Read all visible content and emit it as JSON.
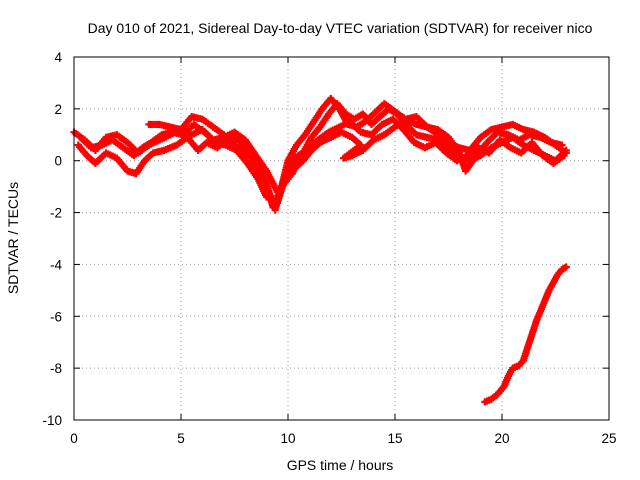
{
  "chart_data": {
    "type": "scatter",
    "title": "Day 010 of 2021, Sidereal Day-to-day VTEC variation (SDTVAR) for receiver nico",
    "xlabel": "GPS time / hours",
    "ylabel": "SDTVAR / TECUs",
    "xlim": [
      0,
      25
    ],
    "ylim": [
      -10,
      4
    ],
    "xticks": [
      0,
      5,
      10,
      15,
      20,
      25
    ],
    "yticks": [
      4,
      2,
      0,
      -2,
      -4,
      -6,
      -8,
      -10
    ],
    "grid": true,
    "marker_color": "#ff0000",
    "series": [
      {
        "name": "track-a",
        "points": [
          [
            0.0,
            1.1
          ],
          [
            0.5,
            0.8
          ],
          [
            1.0,
            0.4
          ],
          [
            1.5,
            0.9
          ],
          [
            2.0,
            1.0
          ],
          [
            2.5,
            0.7
          ],
          [
            3.0,
            0.3
          ],
          [
            3.5,
            0.6
          ],
          [
            4.0,
            0.8
          ],
          [
            4.5,
            1.0
          ],
          [
            5.0,
            1.2
          ],
          [
            5.5,
            1.7
          ],
          [
            6.0,
            1.6
          ],
          [
            6.5,
            1.3
          ],
          [
            7.0,
            1.0
          ],
          [
            7.5,
            0.6
          ],
          [
            8.0,
            0.3
          ],
          [
            8.5,
            0.0
          ],
          [
            9.0,
            -0.9
          ],
          [
            9.3,
            -1.8
          ],
          [
            9.7,
            -1.0
          ],
          [
            10.0,
            0.0
          ],
          [
            10.4,
            0.6
          ],
          [
            10.8,
            1.0
          ],
          [
            11.2,
            1.5
          ],
          [
            11.6,
            2.0
          ],
          [
            12.0,
            2.4
          ],
          [
            12.4,
            2.0
          ],
          [
            12.8,
            1.4
          ],
          [
            13.2,
            1.3
          ],
          [
            13.6,
            1.5
          ],
          [
            14.0,
            1.8
          ],
          [
            14.5,
            2.2
          ],
          [
            15.0,
            1.9
          ],
          [
            15.5,
            1.6
          ],
          [
            16.0,
            1.4
          ],
          [
            16.5,
            1.3
          ],
          [
            17.0,
            1.2
          ],
          [
            17.5,
            0.9
          ],
          [
            18.0,
            0.3
          ],
          [
            18.3,
            -0.4
          ],
          [
            18.8,
            0.2
          ],
          [
            19.3,
            0.7
          ],
          [
            19.8,
            1.1
          ],
          [
            20.3,
            1.0
          ],
          [
            20.8,
            0.8
          ],
          [
            21.3,
            1.0
          ],
          [
            21.8,
            0.9
          ],
          [
            22.3,
            0.7
          ],
          [
            22.8,
            0.6
          ]
        ]
      },
      {
        "name": "track-b",
        "points": [
          [
            0.2,
            0.6
          ],
          [
            0.6,
            0.2
          ],
          [
            1.0,
            -0.1
          ],
          [
            1.5,
            0.3
          ],
          [
            2.0,
            0.1
          ],
          [
            2.5,
            -0.4
          ],
          [
            2.9,
            -0.5
          ],
          [
            3.3,
            0.0
          ],
          [
            3.7,
            0.3
          ],
          [
            4.2,
            0.4
          ],
          [
            4.8,
            0.6
          ],
          [
            5.3,
            0.9
          ],
          [
            5.8,
            0.4
          ],
          [
            6.2,
            0.7
          ],
          [
            6.7,
            0.5
          ],
          [
            7.2,
            0.9
          ],
          [
            7.7,
            0.8
          ],
          [
            8.2,
            0.2
          ],
          [
            8.7,
            -0.5
          ],
          [
            9.1,
            -1.2
          ],
          [
            9.4,
            -1.9
          ],
          [
            9.8,
            -0.8
          ],
          [
            10.2,
            -0.5
          ],
          [
            10.5,
            0.2
          ],
          [
            10.9,
            0.4
          ],
          [
            11.4,
            0.8
          ],
          [
            11.9,
            1.1
          ],
          [
            12.4,
            1.3
          ],
          [
            12.9,
            1.5
          ],
          [
            13.4,
            1.1
          ],
          [
            13.9,
            1.0
          ],
          [
            14.4,
            1.4
          ],
          [
            14.9,
            1.6
          ],
          [
            15.4,
            1.2
          ],
          [
            15.9,
            0.7
          ],
          [
            16.4,
            0.5
          ],
          [
            16.9,
            0.7
          ],
          [
            17.4,
            0.3
          ],
          [
            17.9,
            0.0
          ],
          [
            18.4,
            0.2
          ],
          [
            18.9,
            0.5
          ],
          [
            19.4,
            0.3
          ],
          [
            19.9,
            0.8
          ],
          [
            20.4,
            0.5
          ],
          [
            20.9,
            0.3
          ],
          [
            21.4,
            0.7
          ],
          [
            21.9,
            0.2
          ],
          [
            22.4,
            -0.1
          ],
          [
            22.9,
            0.2
          ]
        ]
      },
      {
        "name": "track-c",
        "points": [
          [
            3.5,
            1.4
          ],
          [
            4.0,
            1.4
          ],
          [
            4.5,
            1.3
          ],
          [
            5.0,
            1.2
          ],
          [
            5.5,
            1.0
          ],
          [
            6.0,
            1.2
          ],
          [
            6.5,
            0.8
          ],
          [
            7.0,
            0.9
          ],
          [
            7.5,
            1.1
          ],
          [
            8.0,
            0.8
          ],
          [
            8.5,
            0.2
          ],
          [
            9.0,
            -0.4
          ],
          [
            9.5,
            -1.2
          ],
          [
            10.0,
            -0.7
          ],
          [
            10.3,
            -0.3
          ],
          [
            10.7,
            0.0
          ],
          [
            11.1,
            0.4
          ],
          [
            11.5,
            0.7
          ],
          [
            12.0,
            0.9
          ],
          [
            12.5,
            1.1
          ],
          [
            13.0,
            0.9
          ],
          [
            13.4,
            0.6
          ],
          [
            12.6,
            0.1
          ],
          [
            13.0,
            0.2
          ],
          [
            13.5,
            0.4
          ],
          [
            14.0,
            0.8
          ],
          [
            14.5,
            1.0
          ],
          [
            15.0,
            1.3
          ],
          [
            15.5,
            1.6
          ],
          [
            16.0,
            1.7
          ],
          [
            16.5,
            1.3
          ],
          [
            17.0,
            1.0
          ],
          [
            17.5,
            0.7
          ],
          [
            18.0,
            0.5
          ],
          [
            18.5,
            0.4
          ],
          [
            19.0,
            0.9
          ],
          [
            19.5,
            1.2
          ],
          [
            20.0,
            1.3
          ],
          [
            20.5,
            1.4
          ],
          [
            21.0,
            1.2
          ],
          [
            21.5,
            1.1
          ],
          [
            22.0,
            0.9
          ],
          [
            22.5,
            0.6
          ],
          [
            23.0,
            0.3
          ]
        ]
      },
      {
        "name": "track-d",
        "points": [
          [
            0.3,
            0.9
          ],
          [
            0.8,
            0.5
          ],
          [
            1.3,
            0.6
          ],
          [
            1.8,
            0.8
          ],
          [
            2.3,
            0.5
          ],
          [
            2.8,
            0.2
          ],
          [
            3.2,
            0.5
          ],
          [
            3.6,
            0.7
          ],
          [
            4.1,
            1.0
          ],
          [
            4.6,
            1.1
          ],
          [
            5.1,
            1.0
          ],
          [
            5.6,
            1.4
          ],
          [
            6.1,
            1.1
          ],
          [
            6.6,
            0.7
          ],
          [
            7.1,
            0.6
          ],
          [
            7.6,
            0.4
          ],
          [
            8.1,
            -0.1
          ],
          [
            8.6,
            -0.7
          ],
          [
            9.0,
            -1.4
          ],
          [
            9.5,
            -1.6
          ],
          [
            9.9,
            -0.6
          ],
          [
            10.3,
            0.1
          ],
          [
            10.7,
            0.3
          ],
          [
            11.1,
            0.9
          ],
          [
            11.5,
            1.3
          ],
          [
            11.9,
            1.8
          ],
          [
            12.3,
            2.2
          ],
          [
            12.7,
            1.8
          ],
          [
            13.1,
            1.6
          ],
          [
            13.5,
            1.8
          ],
          [
            13.9,
            1.4
          ],
          [
            14.3,
            1.7
          ],
          [
            14.7,
            2.0
          ],
          [
            15.1,
            1.8
          ],
          [
            15.5,
            1.4
          ],
          [
            16.0,
            1.0
          ],
          [
            16.5,
            0.9
          ],
          [
            17.0,
            0.8
          ],
          [
            17.5,
            0.5
          ],
          [
            18.0,
            0.1
          ],
          [
            18.5,
            0.0
          ],
          [
            19.0,
            0.2
          ],
          [
            19.5,
            0.5
          ],
          [
            20.0,
            0.7
          ],
          [
            20.5,
            0.9
          ],
          [
            21.0,
            0.6
          ],
          [
            21.5,
            0.4
          ],
          [
            22.0,
            0.2
          ],
          [
            22.5,
            0.0
          ],
          [
            23.0,
            0.4
          ]
        ]
      },
      {
        "name": "track-e",
        "points": [
          [
            19.2,
            -9.3
          ],
          [
            19.5,
            -9.2
          ],
          [
            19.8,
            -9.0
          ],
          [
            20.1,
            -8.7
          ],
          [
            20.3,
            -8.3
          ],
          [
            20.5,
            -8.0
          ],
          [
            20.8,
            -7.9
          ],
          [
            21.0,
            -7.7
          ],
          [
            21.2,
            -7.2
          ],
          [
            21.4,
            -6.7
          ],
          [
            21.6,
            -6.2
          ],
          [
            21.8,
            -5.8
          ],
          [
            22.0,
            -5.4
          ],
          [
            22.2,
            -5.0
          ],
          [
            22.4,
            -4.7
          ],
          [
            22.6,
            -4.4
          ],
          [
            22.8,
            -4.2
          ],
          [
            23.0,
            -4.1
          ]
        ]
      }
    ]
  }
}
